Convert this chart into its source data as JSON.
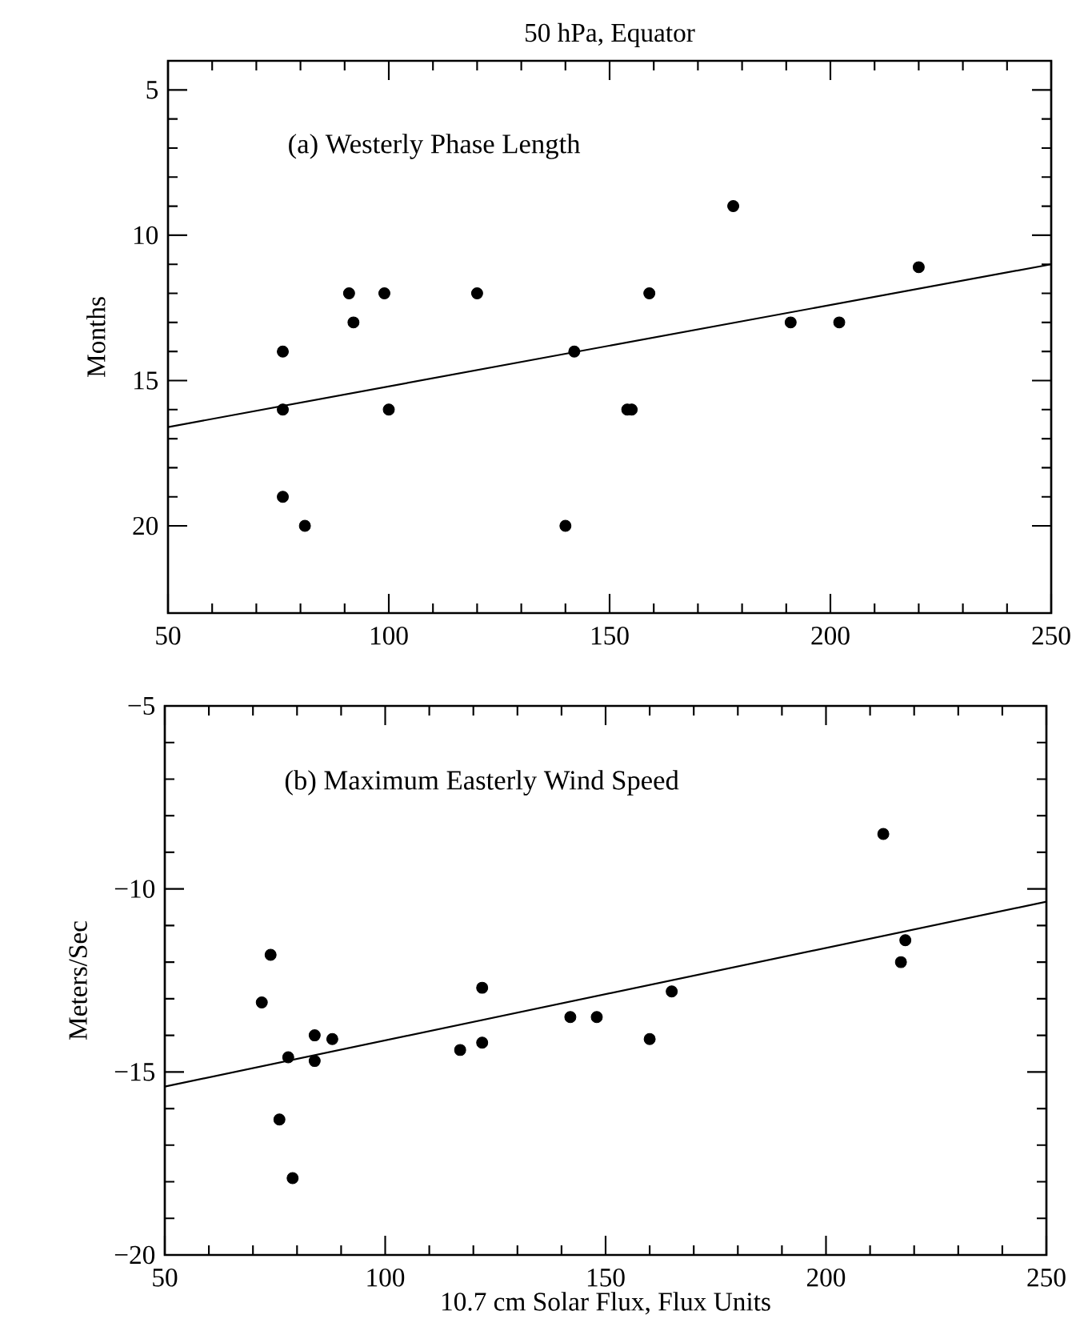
{
  "chart_data": [
    {
      "type": "scatter",
      "title": "50 hPa, Equator",
      "ylabel": "Months",
      "annotations": [
        "(a) Westerly Phase Length"
      ],
      "xlim": [
        50,
        250
      ],
      "xticks": [
        50,
        100,
        150,
        200,
        250
      ],
      "ylim": [
        23,
        4
      ],
      "yticks": [
        5,
        10,
        15,
        20
      ],
      "series": [
        {
          "marker": "circle",
          "color": "#000000",
          "x": [
            76,
            76,
            91,
            92,
            99,
            100,
            120,
            142,
            154,
            155,
            159,
            178,
            191,
            202,
            220,
            76,
            81,
            140
          ],
          "values": [
            14,
            16,
            12,
            13,
            12,
            16,
            12,
            14,
            16,
            16,
            12,
            9,
            13,
            13,
            11.1,
            19,
            20,
            20
          ]
        },
        {
          "type": "line",
          "marker": "none",
          "color": "#000000",
          "x": [
            50,
            250
          ],
          "values": [
            16.6,
            11.0
          ]
        }
      ]
    },
    {
      "type": "scatter",
      "xlabel": "10.7 cm Solar Flux, Flux Units",
      "ylabel": "Meters/Sec",
      "annotations": [
        "(b) Maximum Easterly Wind Speed"
      ],
      "xlim": [
        50,
        250
      ],
      "xticks": [
        50,
        100,
        150,
        200,
        250
      ],
      "ylim": [
        -20,
        -5
      ],
      "yticks": [
        {
          "value": -20,
          "label": "−20"
        },
        {
          "value": -15,
          "label": "−15"
        },
        {
          "value": -10,
          "label": "−10"
        },
        {
          "value": -5,
          "label": "−5"
        }
      ],
      "series": [
        {
          "marker": "circle",
          "color": "#000000",
          "x": [
            72,
            74,
            122,
            165,
            213,
            218,
            217,
            142,
            148,
            84,
            88,
            78,
            84,
            117,
            122,
            160,
            76,
            79
          ],
          "values": [
            -13.1,
            -11.8,
            -12.7,
            -12.8,
            -8.5,
            -11.4,
            -12.0,
            -13.5,
            -13.5,
            -14.0,
            -14.1,
            -14.6,
            -14.7,
            -14.4,
            -14.2,
            -14.1,
            -16.3,
            -17.9
          ]
        },
        {
          "type": "line",
          "marker": "none",
          "color": "#000000",
          "x": [
            50,
            250
          ],
          "values": [
            -15.4,
            -10.35
          ]
        }
      ]
    }
  ]
}
